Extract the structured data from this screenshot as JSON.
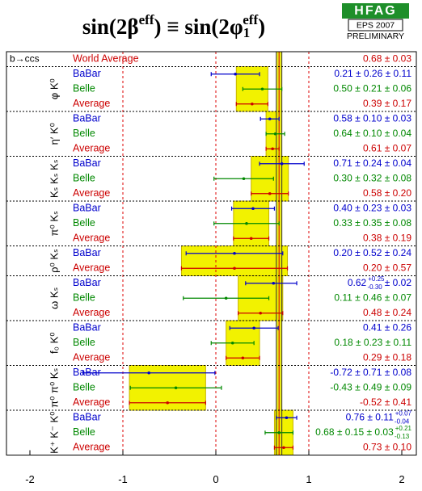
{
  "chart_data": {
    "type": "forest",
    "title": [
      "sin(2β",
      "eff",
      ") ≡ sin(2φ",
      "1",
      "eff",
      ")"
    ],
    "logo": {
      "name": "HFAG",
      "conference": "EPS 2007",
      "status": "PRELIMINARY"
    },
    "process": "b→ccs",
    "world_average": {
      "name": "World Average",
      "value": 0.68,
      "err": 0.03,
      "label": "0.68 ± 0.03"
    },
    "colors": {
      "BaBar": "#0000cc",
      "Belle": "#008800",
      "Average": "#cc0000"
    },
    "xlim": [
      -2,
      2
    ],
    "xticks": [
      -2,
      -1,
      0,
      1,
      2
    ],
    "groups": [
      {
        "mode": "φ K⁰",
        "entries": [
          {
            "name": "BaBar",
            "value": 0.21,
            "err": 0.26,
            "label": "0.21 ± 0.26 ± 0.11"
          },
          {
            "name": "Belle",
            "value": 0.5,
            "err": 0.21,
            "label": "0.50 ± 0.21 ± 0.06"
          },
          {
            "name": "Average",
            "value": 0.39,
            "err": 0.17,
            "label": "0.39 ± 0.17"
          }
        ]
      },
      {
        "mode": "η′ K⁰",
        "entries": [
          {
            "name": "BaBar",
            "value": 0.58,
            "err": 0.1,
            "label": "0.58 ± 0.10 ± 0.03"
          },
          {
            "name": "Belle",
            "value": 0.64,
            "err": 0.1,
            "label": "0.64 ± 0.10 ± 0.04"
          },
          {
            "name": "Average",
            "value": 0.61,
            "err": 0.07,
            "label": "0.61 ± 0.07"
          }
        ]
      },
      {
        "mode": "Kₛ Kₛ Kₛ",
        "entries": [
          {
            "name": "BaBar",
            "value": 0.71,
            "err": 0.24,
            "label": "0.71 ± 0.24 ± 0.04"
          },
          {
            "name": "Belle",
            "value": 0.3,
            "err": 0.32,
            "label": "0.30 ± 0.32 ± 0.08"
          },
          {
            "name": "Average",
            "value": 0.58,
            "err": 0.2,
            "label": "0.58 ± 0.20"
          }
        ]
      },
      {
        "mode": "π⁰ Kₛ",
        "entries": [
          {
            "name": "BaBar",
            "value": 0.4,
            "err": 0.23,
            "label": "0.40 ± 0.23 ± 0.03"
          },
          {
            "name": "Belle",
            "value": 0.33,
            "err": 0.35,
            "label": "0.33 ± 0.35 ± 0.08"
          },
          {
            "name": "Average",
            "value": 0.38,
            "err": 0.19,
            "label": "0.38 ± 0.19"
          }
        ]
      },
      {
        "mode": "ρ⁰ Kₛ",
        "entries": [
          {
            "name": "BaBar",
            "value": 0.2,
            "err": 0.52,
            "label": "0.20 ± 0.52 ± 0.24"
          },
          {
            "name": "Average",
            "value": 0.2,
            "err": 0.57,
            "label": "0.20 ± 0.57"
          }
        ]
      },
      {
        "mode": "ω Kₛ",
        "entries": [
          {
            "name": "BaBar",
            "value": 0.62,
            "err_plus": 0.25,
            "err_minus": 0.3,
            "label": "0.62",
            "sup": "+0.25",
            "sub": "-0.30",
            "label_end": "± 0.02"
          },
          {
            "name": "Belle",
            "value": 0.11,
            "err": 0.46,
            "label": "0.11 ± 0.46 ± 0.07"
          },
          {
            "name": "Average",
            "value": 0.48,
            "err": 0.24,
            "label": "0.48 ± 0.24"
          }
        ]
      },
      {
        "mode": "f₀ K⁰",
        "entries": [
          {
            "name": "BaBar",
            "value": 0.41,
            "err": 0.26,
            "label": "0.41 ± 0.26"
          },
          {
            "name": "Belle",
            "value": 0.18,
            "err": 0.23,
            "label": "0.18 ± 0.23 ± 0.11"
          },
          {
            "name": "Average",
            "value": 0.29,
            "err": 0.18,
            "label": "0.29 ± 0.18"
          }
        ]
      },
      {
        "mode": "π⁰ π⁰ Kₛ",
        "entries": [
          {
            "name": "BaBar",
            "value": -0.72,
            "err": 0.71,
            "label": "-0.72 ± 0.71 ± 0.08"
          },
          {
            "name": "Belle",
            "value": -0.43,
            "err": 0.49,
            "label": "-0.43 ± 0.49 ± 0.09"
          },
          {
            "name": "Average",
            "value": -0.52,
            "err": 0.41,
            "label": "-0.52 ± 0.41"
          }
        ]
      },
      {
        "mode": "K⁺ K⁻ K⁰",
        "entries": [
          {
            "name": "BaBar",
            "value": 0.76,
            "err": 0.11,
            "label": "0.76 ± 0.11",
            "sup": "+0.07",
            "sub": "-0.04"
          },
          {
            "name": "Belle",
            "value": 0.68,
            "err": 0.15,
            "label": "0.68 ± 0.15 ± 0.03",
            "sup": "+0.21",
            "sub": "-0.13"
          },
          {
            "name": "Average",
            "value": 0.73,
            "err": 0.1,
            "label": "0.73 ± 0.10"
          }
        ]
      }
    ]
  }
}
